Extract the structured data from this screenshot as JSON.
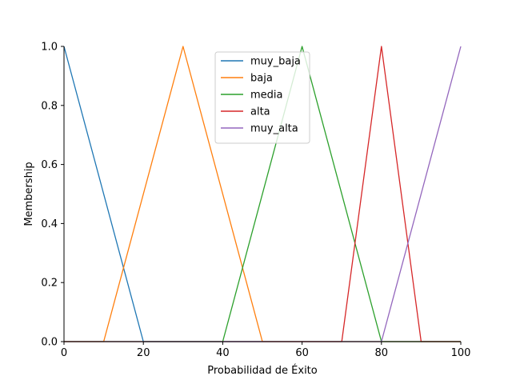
{
  "chart_data": {
    "type": "line",
    "title": "",
    "xlabel": "Probabilidad de Éxito",
    "ylabel": "Membership",
    "xlim": [
      0,
      100
    ],
    "ylim": [
      0,
      1
    ],
    "xticks": [
      0,
      20,
      40,
      60,
      80,
      100
    ],
    "yticks": [
      0.0,
      0.2,
      0.4,
      0.6,
      0.8,
      1.0
    ],
    "ytick_labels": [
      "0.0",
      "0.2",
      "0.4",
      "0.6",
      "0.8",
      "1.0"
    ],
    "grid": false,
    "legend_position": "top-center",
    "series": [
      {
        "name": "muy_baja",
        "color": "#1f77b4",
        "x": [
          0,
          0,
          20,
          100
        ],
        "y": [
          1,
          1,
          0,
          0
        ]
      },
      {
        "name": "baja",
        "color": "#ff7f0e",
        "x": [
          0,
          10,
          30,
          50,
          100
        ],
        "y": [
          0,
          0,
          1,
          0,
          0
        ]
      },
      {
        "name": "media",
        "color": "#2ca02c",
        "x": [
          0,
          40,
          60,
          80,
          100
        ],
        "y": [
          0,
          0,
          1,
          0,
          0
        ]
      },
      {
        "name": "alta",
        "color": "#d62728",
        "x": [
          0,
          70,
          80,
          90,
          100
        ],
        "y": [
          0,
          0,
          1,
          0,
          0
        ]
      },
      {
        "name": "muy_alta",
        "color": "#9467bd",
        "x": [
          0,
          80,
          100
        ],
        "y": [
          0,
          0,
          1
        ]
      }
    ]
  }
}
